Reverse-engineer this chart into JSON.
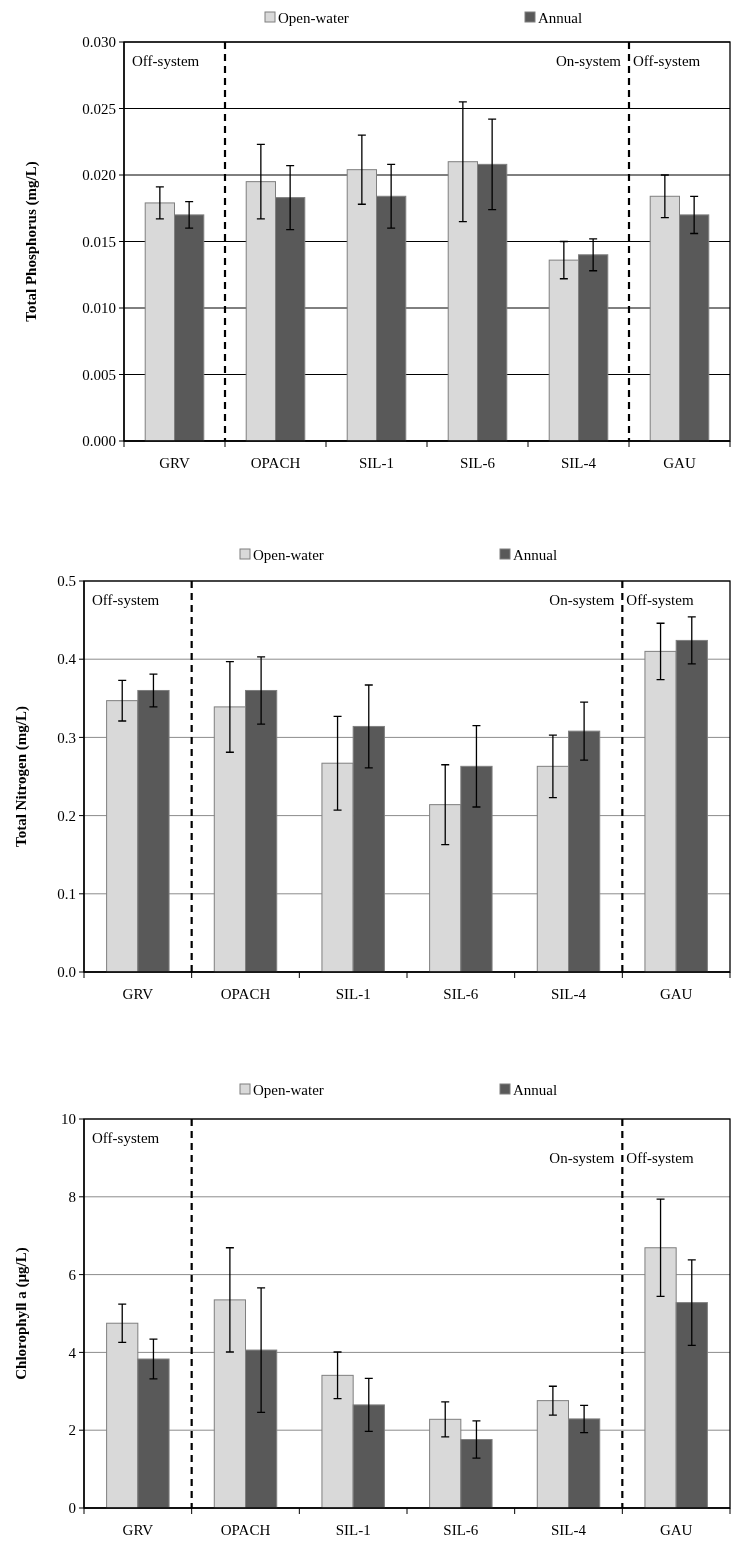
{
  "chart_data": [
    {
      "type": "bar",
      "ylabel": "Total  Phosphorus  (mg/L)",
      "categories": [
        "GRV",
        "OPACH",
        "SIL-1",
        "SIL-6",
        "SIL-4",
        "GAU"
      ],
      "series": [
        {
          "name": "Open-water",
          "color": "#d9d9d9",
          "values": [
            0.0179,
            0.0195,
            0.0204,
            0.021,
            0.0136,
            0.0184
          ],
          "errors": [
            0.0012,
            0.0028,
            0.0026,
            0.0045,
            0.0014,
            0.0016
          ]
        },
        {
          "name": "Annual",
          "color": "#595959",
          "values": [
            0.017,
            0.0183,
            0.0184,
            0.0208,
            0.014,
            0.017
          ],
          "errors": [
            0.001,
            0.0024,
            0.0024,
            0.0034,
            0.0012,
            0.0014
          ]
        }
      ],
      "ylim": [
        0,
        0.03
      ],
      "yticks": [
        {
          "value": 0,
          "label": "0.000"
        },
        {
          "value": 0.005,
          "label": "0.005"
        },
        {
          "value": 0.01,
          "label": "0.010"
        },
        {
          "value": 0.015,
          "label": "0.015"
        },
        {
          "value": 0.02,
          "label": "0.020"
        },
        {
          "value": 0.025,
          "label": "0.025"
        },
        {
          "value": 0.03,
          "label": "0.030"
        }
      ],
      "grid": "y",
      "legend": "top",
      "annotations": [
        "Off-system",
        "On-system",
        "Off-system"
      ]
    },
    {
      "type": "bar",
      "ylabel": "Total  Nitrogen (mg/L)",
      "categories": [
        "GRV",
        "OPACH",
        "SIL-1",
        "SIL-6",
        "SIL-4",
        "GAU"
      ],
      "series": [
        {
          "name": "Open-water",
          "color": "#d9d9d9",
          "values": [
            0.347,
            0.339,
            0.267,
            0.214,
            0.263,
            0.41
          ],
          "errors": [
            0.026,
            0.058,
            0.06,
            0.051,
            0.04,
            0.036
          ]
        },
        {
          "name": "Annual",
          "color": "#595959",
          "values": [
            0.36,
            0.36,
            0.314,
            0.263,
            0.308,
            0.424
          ],
          "errors": [
            0.021,
            0.043,
            0.053,
            0.052,
            0.037,
            0.03
          ]
        }
      ],
      "ylim": [
        0,
        0.5
      ],
      "yticks": [
        {
          "value": 0,
          "label": "0.0"
        },
        {
          "value": 0.1,
          "label": "0.1"
        },
        {
          "value": 0.2,
          "label": "0.2"
        },
        {
          "value": 0.3,
          "label": "0.3"
        },
        {
          "value": 0.4,
          "label": "0.4"
        },
        {
          "value": 0.5,
          "label": "0.5"
        }
      ],
      "grid": "y",
      "legend": "top",
      "annotations": [
        "Off-system",
        "On-system",
        "Off-system"
      ]
    },
    {
      "type": "bar",
      "ylabel": "Chlorophyll  a (µg/L)",
      "categories": [
        "GRV",
        "OPACH",
        "SIL-1",
        "SIL-6",
        "SIL-4",
        "GAU"
      ],
      "series": [
        {
          "name": "Open-water",
          "color": "#d9d9d9",
          "values": [
            4.75,
            5.35,
            3.41,
            2.28,
            2.76,
            6.69
          ],
          "errors": [
            0.49,
            1.34,
            0.6,
            0.45,
            0.37,
            1.25
          ]
        },
        {
          "name": "Annual",
          "color": "#595959",
          "values": [
            3.83,
            4.06,
            2.65,
            1.76,
            2.29,
            5.28
          ],
          "errors": [
            0.51,
            1.6,
            0.68,
            0.48,
            0.35,
            1.1
          ]
        }
      ],
      "ylim": [
        0,
        10
      ],
      "yticks": [
        0,
        2,
        4,
        6,
        8,
        10
      ],
      "grid": "y",
      "legend": "top",
      "annotations": [
        "Off-system",
        "On-system",
        "Off-system"
      ]
    }
  ]
}
